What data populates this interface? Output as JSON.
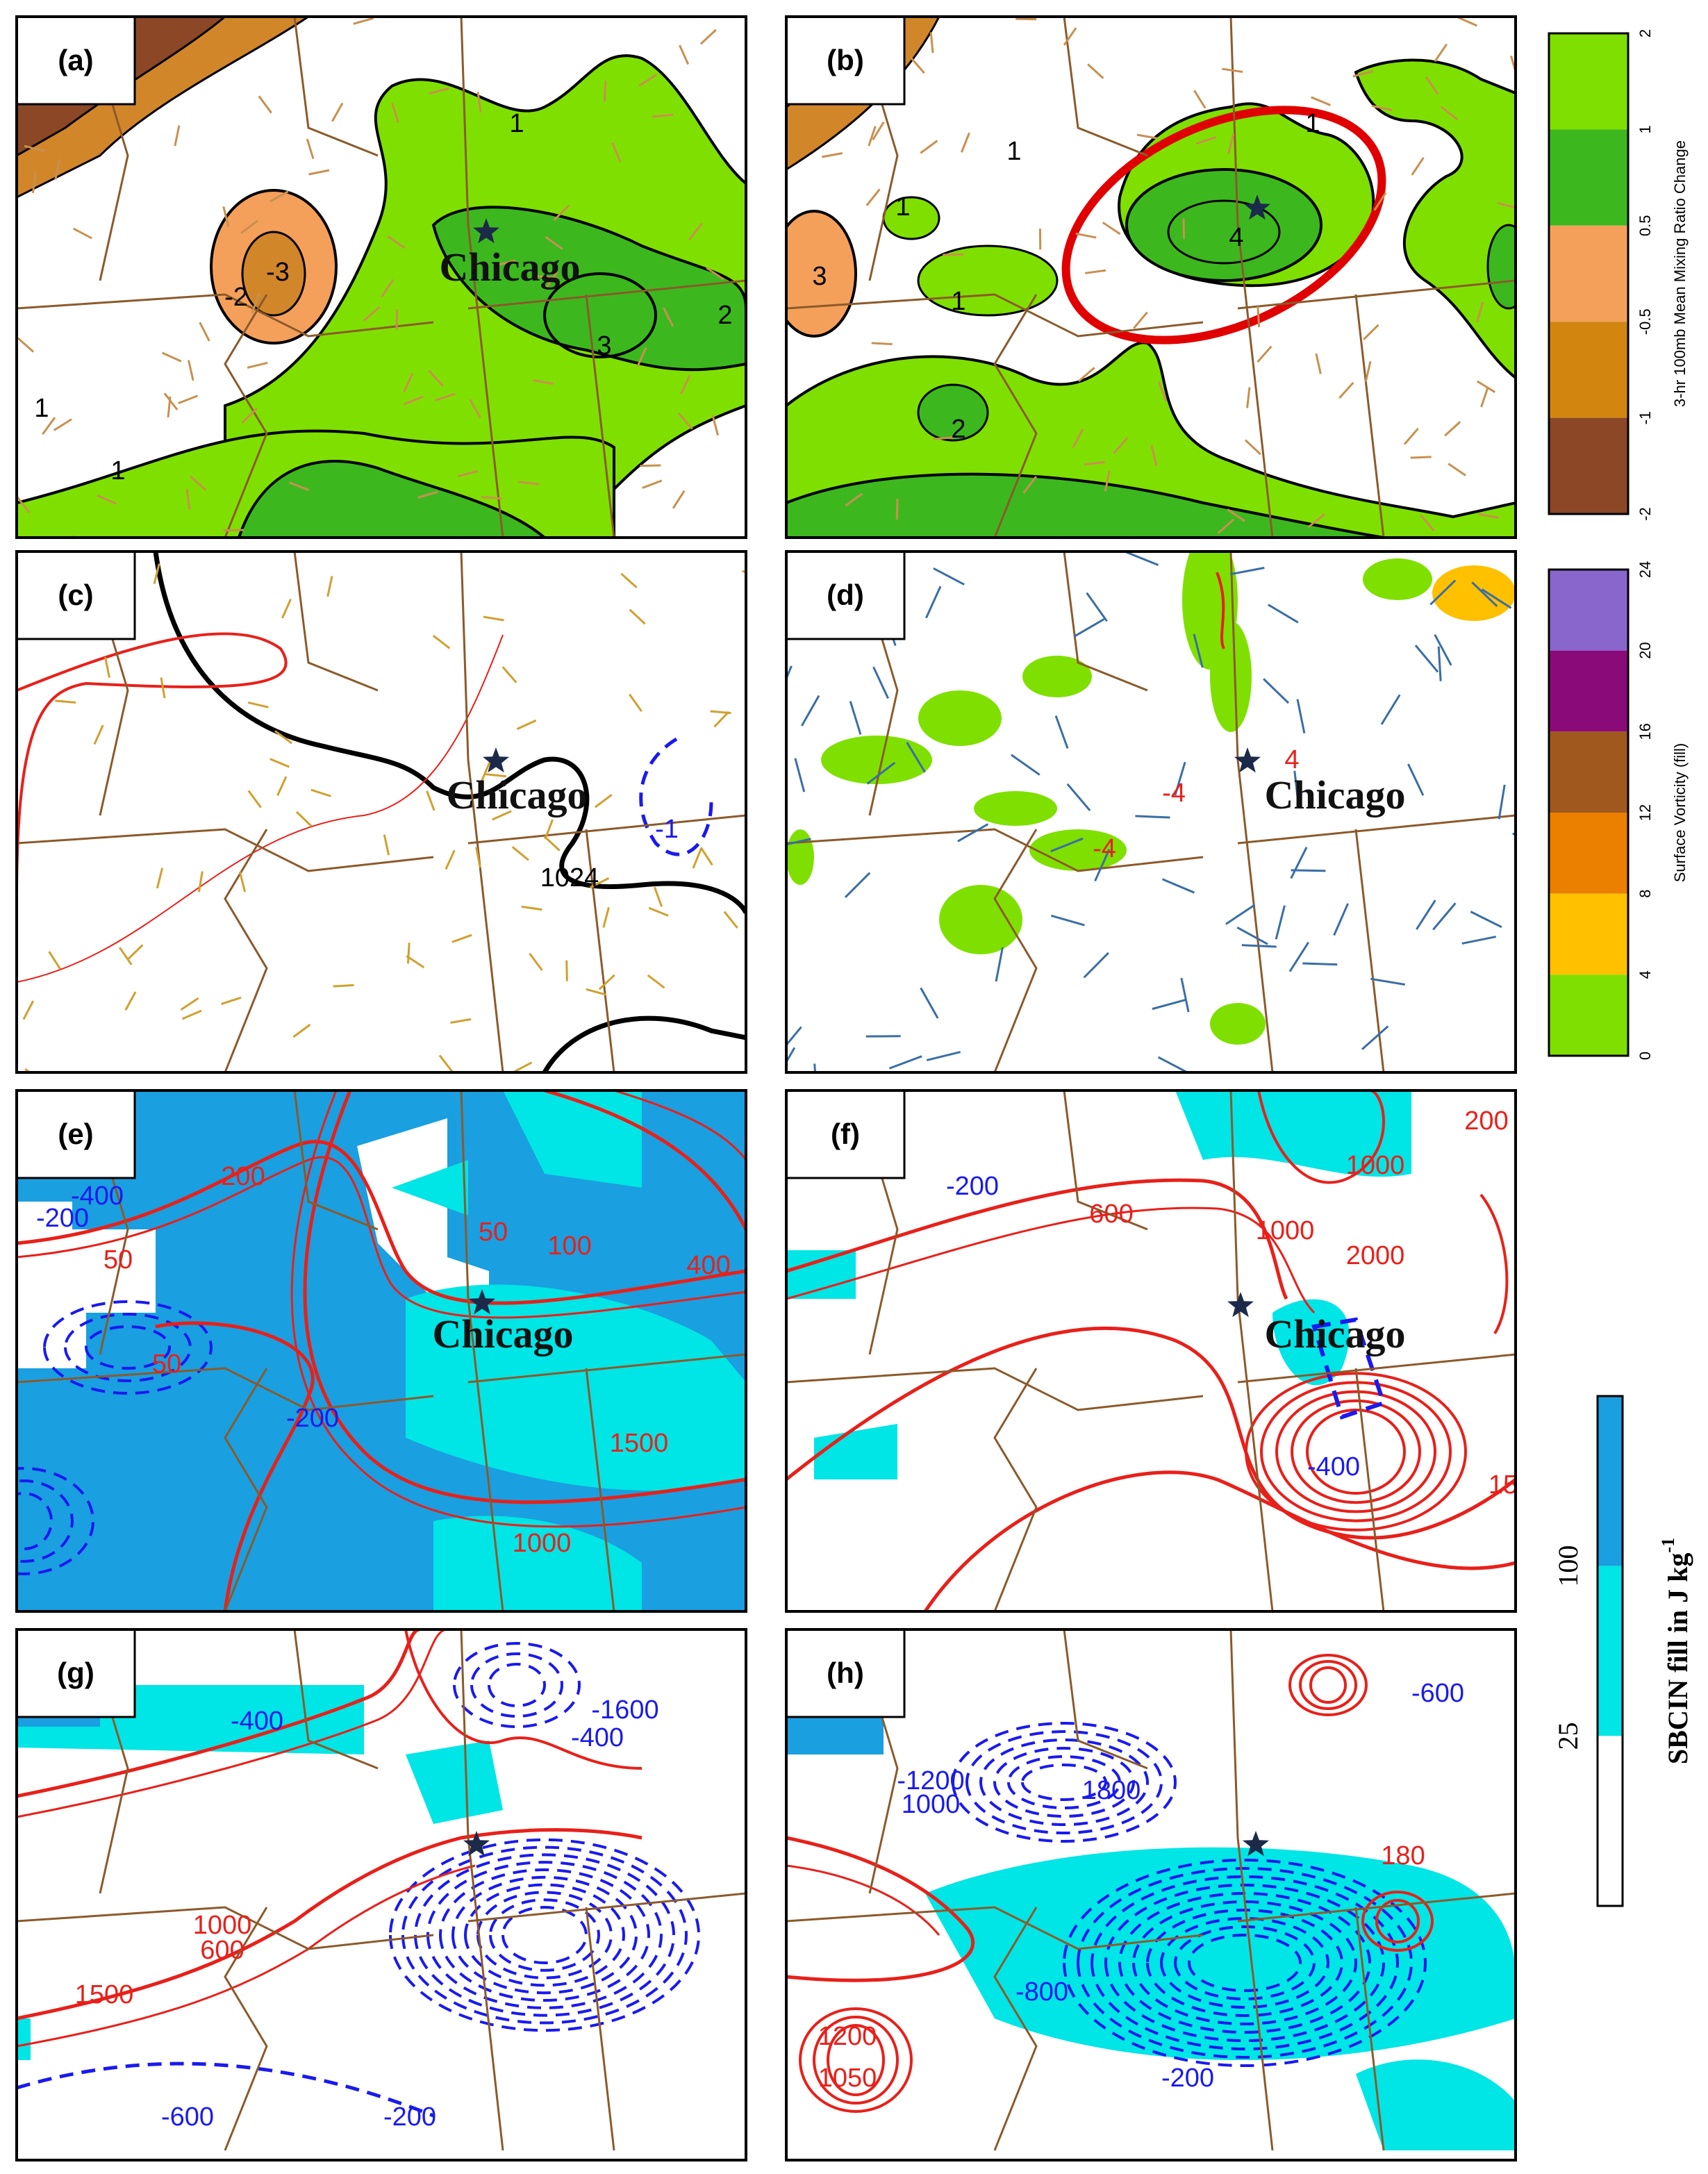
{
  "panels": [
    {
      "label": "(a)",
      "city": "Chicago",
      "contour_labels": [
        "1",
        "-2",
        "-3",
        "3",
        "2",
        "1",
        "1"
      ]
    },
    {
      "label": "(b)",
      "contour_labels": [
        "1",
        "1",
        "1",
        "1",
        "4",
        "2",
        "3"
      ]
    },
    {
      "label": "(c)",
      "city": "Chicago",
      "contour_labels": [
        "1024",
        "-1"
      ]
    },
    {
      "label": "(d)",
      "city": "Chicago",
      "contour_labels": [
        "-4",
        "4",
        "-4"
      ]
    },
    {
      "label": "(e)",
      "city": "Chicago",
      "contour_labels": [
        "200",
        "-400",
        "-200",
        "50",
        "50",
        "100",
        "400",
        "50",
        "-200",
        "1500",
        "1000"
      ]
    },
    {
      "label": "(f)",
      "city": "Chicago",
      "contour_labels": [
        "-200",
        "600",
        "1000",
        "200",
        "1000",
        "2000",
        "-400",
        "15"
      ]
    },
    {
      "label": "(g)",
      "contour_labels": [
        "-400",
        "-1600",
        "-400",
        "1000",
        "600",
        "1500",
        "-200",
        "-600"
      ]
    },
    {
      "label": "(h)",
      "contour_labels": [
        "-1200",
        "1000",
        "1800",
        "-600",
        "180",
        "-200",
        "1200",
        "1050",
        "-800"
      ]
    }
  ],
  "colorbars": [
    {
      "title": "3-hr 100mb Mean Mixing Ratio Change",
      "ticks": [
        2,
        1,
        0.5,
        -0.5,
        -1,
        -2
      ]
    },
    {
      "title": "Surface Vorticity (fill)",
      "ticks": [
        24,
        20,
        16,
        12,
        8,
        4,
        0
      ]
    },
    {
      "title": "SBCIN fill in J kg",
      "title_superscript": "-1",
      "ticks": [
        100,
        25
      ]
    }
  ]
}
